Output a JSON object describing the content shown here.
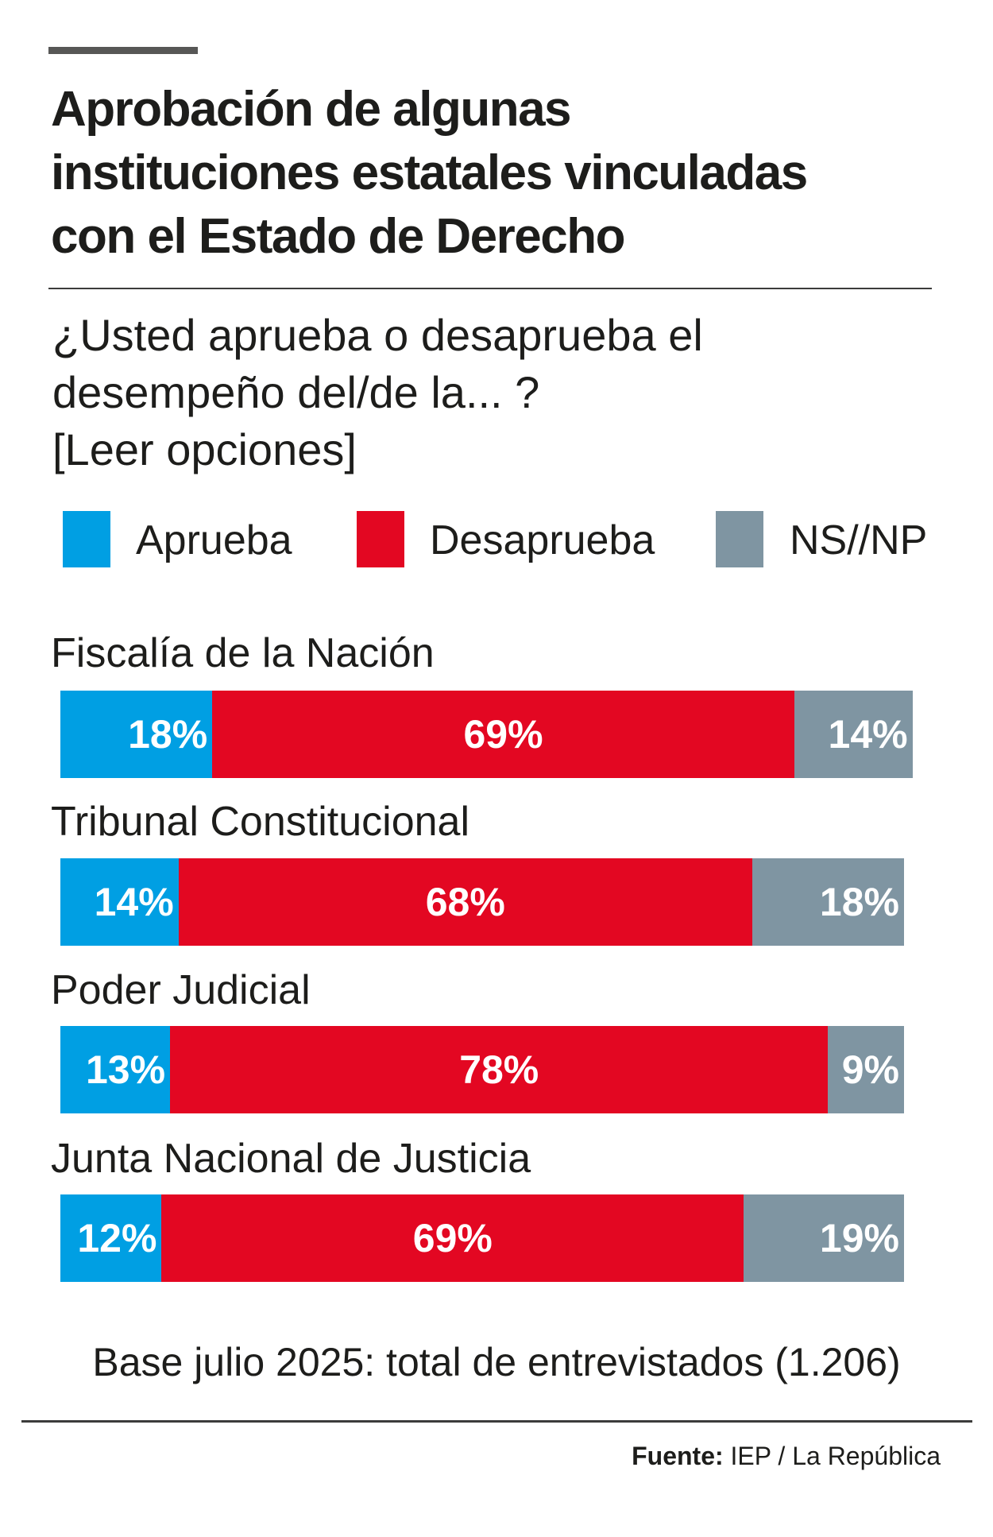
{
  "title": [
    "Aprobación de algunas",
    "instituciones estatales vinculadas",
    "con el Estado de Derecho"
  ],
  "question": [
    "¿Usted aprueba o desaprueba el",
    "desempeño del/de la... ?",
    "[Leer opciones]"
  ],
  "colors": {
    "aprueba": "#009fe3",
    "desaprueba": "#e30722",
    "nsnp": "#7f95a2"
  },
  "chart_data": {
    "type": "bar",
    "orientation": "horizontal-stacked",
    "categories": [
      "Fiscalía de la Nación",
      "Tribunal Constitucional",
      "Poder Judicial",
      "Junta Nacional de Justicia"
    ],
    "series": [
      {
        "name": "Aprueba",
        "values": [
          18,
          14,
          13,
          12
        ]
      },
      {
        "name": "Desaprueba",
        "values": [
          69,
          68,
          78,
          69
        ]
      },
      {
        "name": "NS//NP",
        "values": [
          14,
          18,
          9,
          19
        ]
      }
    ],
    "unit": "%",
    "legend": "top"
  },
  "footer": {
    "base": "Base julio 2025: total de entrevistados (1.206)",
    "source_label": "Fuente:",
    "source_value": "IEP / La República"
  }
}
